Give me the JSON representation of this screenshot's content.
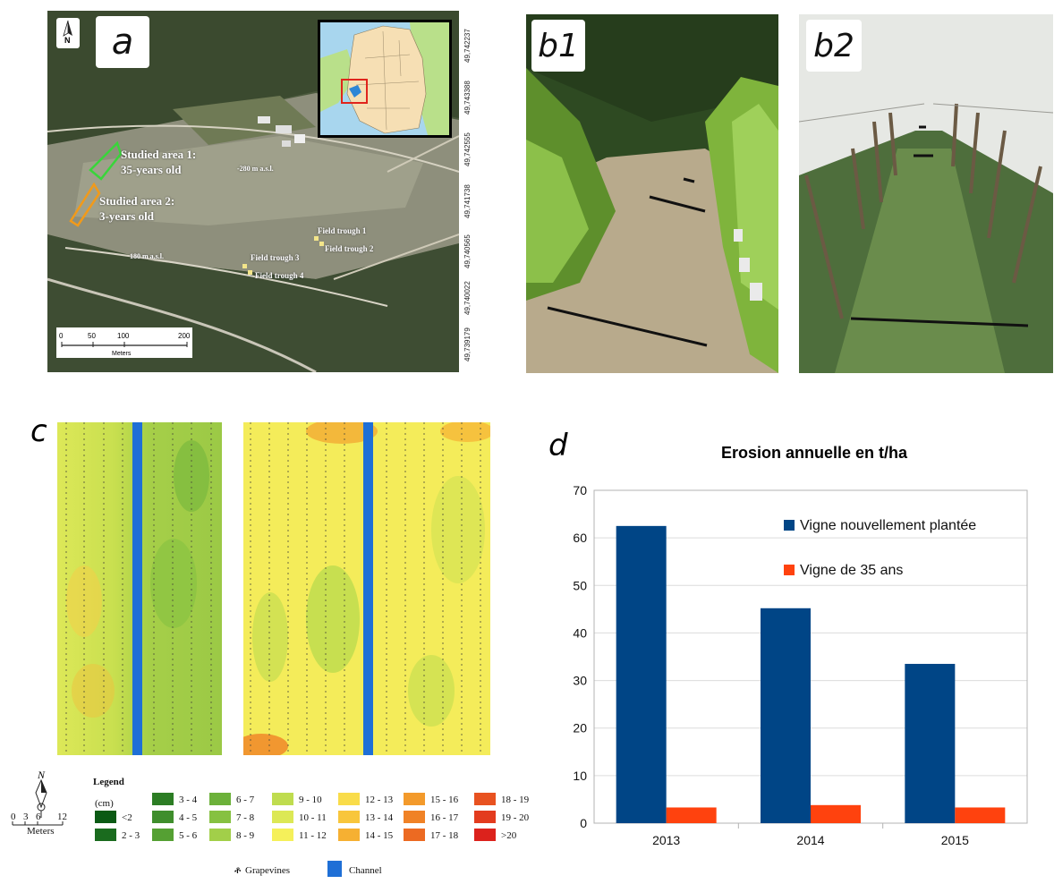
{
  "panels": {
    "a": "a",
    "b1": "b1",
    "b2": "b2",
    "c": "c",
    "d": "d"
  },
  "map": {
    "north": "N",
    "area1_line1": "Studied area 1:",
    "area1_line2": "35-years old",
    "area2_line1": "Studied area 2:",
    "area2_line2": "3-years old",
    "elev_top": "-280 m a.s.l.",
    "elev_bottom": "180 m a.s.l.",
    "trough1": "Field trough 1",
    "trough2": "Field trough 2",
    "trough3": "Field trough 3",
    "trough4": "Field trough 4",
    "scale_ticks": [
      "0",
      "50",
      "100",
      "200"
    ],
    "scale_unit": "Meters",
    "coords": [
      "49,742237",
      "49,743388",
      "49,742555",
      "49,741738",
      "49,740565",
      "49,740022",
      "49,739179"
    ]
  },
  "legend": {
    "title": "Legend",
    "unit": "(cm)",
    "classes": [
      {
        "label": "<2",
        "color": "#0b5a14"
      },
      {
        "label": "2 - 3",
        "color": "#1a6b1e"
      },
      {
        "label": "3 - 4",
        "color": "#2c7d24"
      },
      {
        "label": "4 - 5",
        "color": "#3f8e2c"
      },
      {
        "label": "5 - 6",
        "color": "#55a033"
      },
      {
        "label": "6 - 7",
        "color": "#6cb13a"
      },
      {
        "label": "7 - 8",
        "color": "#86c141"
      },
      {
        "label": "8 - 9",
        "color": "#a2cf49"
      },
      {
        "label": "9 - 10",
        "color": "#bfdc4f"
      },
      {
        "label": "10 - 11",
        "color": "#dce855"
      },
      {
        "label": "11 - 12",
        "color": "#f5f05a"
      },
      {
        "label": "12 - 13",
        "color": "#f9dc4a"
      },
      {
        "label": "13 - 14",
        "color": "#f8c63c"
      },
      {
        "label": "14 - 15",
        "color": "#f6b032"
      },
      {
        "label": "15 - 16",
        "color": "#f39a2b"
      },
      {
        "label": "16 - 17",
        "color": "#f08226"
      },
      {
        "label": "17 - 18",
        "color": "#ec6a22"
      },
      {
        "label": "18 - 19",
        "color": "#e85220"
      },
      {
        "label": "19 - 20",
        "color": "#e33b1e"
      },
      {
        "label": ">20",
        "color": "#dc221c"
      }
    ],
    "grapevines": "Grapevines",
    "channel": "Channel",
    "channel_color": "#1f6fd6",
    "scale_ticks": [
      "0",
      "3",
      "6",
      "12"
    ],
    "scale_unit": "Meters",
    "north": "N"
  },
  "chart_data": {
    "type": "bar",
    "title": "Erosion annuelle en t/ha",
    "categories": [
      "2013",
      "2014",
      "2015"
    ],
    "series": [
      {
        "name": "Vigne nouvellement plantée",
        "color": "#004586",
        "values": [
          62.5,
          45.2,
          33.5
        ]
      },
      {
        "name": "Vigne de 35 ans",
        "color": "#ff420e",
        "values": [
          3.3,
          3.8,
          3.3
        ]
      }
    ],
    "ylim": [
      0,
      70
    ],
    "yticks": [
      0,
      10,
      20,
      30,
      40,
      50,
      60,
      70
    ],
    "grid": true,
    "legend_position": "top-right"
  }
}
